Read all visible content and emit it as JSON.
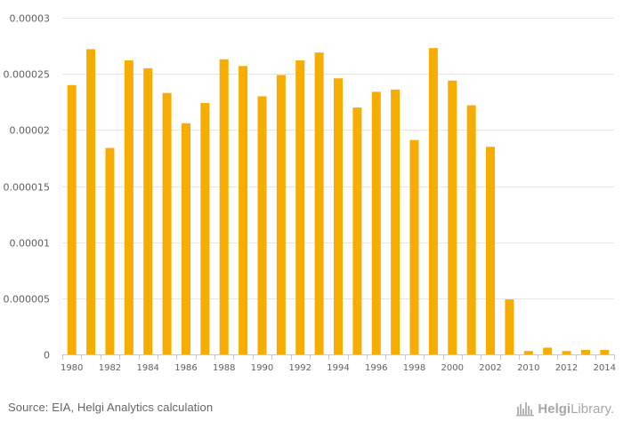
{
  "chart_data": {
    "type": "bar",
    "categories": [
      "1980",
      "1981",
      "1982",
      "1983",
      "1984",
      "1985",
      "1986",
      "1987",
      "1988",
      "1989",
      "1990",
      "1991",
      "1992",
      "1993",
      "1994",
      "1995",
      "1996",
      "1997",
      "1998",
      "1999",
      "2000",
      "2001",
      "2002",
      "2003",
      "2010",
      "2011",
      "2012",
      "2013",
      "2014"
    ],
    "x_tick_labels": [
      "1980",
      "1982",
      "1984",
      "1986",
      "1988",
      "1990",
      "1992",
      "1994",
      "1996",
      "1998",
      "2000",
      "2002",
      "2010",
      "2012",
      "2014"
    ],
    "values": [
      2.4e-05,
      2.72e-05,
      1.84e-05,
      2.62e-05,
      2.55e-05,
      2.33e-05,
      2.06e-05,
      2.24e-05,
      2.63e-05,
      2.57e-05,
      2.3e-05,
      2.49e-05,
      2.62e-05,
      2.69e-05,
      2.46e-05,
      2.2e-05,
      2.34e-05,
      2.36e-05,
      1.91e-05,
      2.73e-05,
      2.44e-05,
      2.22e-05,
      1.85e-05,
      4.9e-06,
      3e-07,
      6e-07,
      3e-07,
      4e-07,
      4e-07
    ],
    "y_ticks": [
      0,
      5e-06,
      1e-05,
      1.5e-05,
      2e-05,
      2.5e-05,
      3e-05
    ],
    "y_tick_labels": [
      "0",
      "0.000005",
      "0.00001",
      "0.000015",
      "0.00002",
      "0.000025",
      "0.00003"
    ],
    "ylim": [
      0,
      3e-05
    ],
    "bar_color": "#f6ad00",
    "grid": true,
    "grid_color": "#e6e6e6"
  },
  "footer": {
    "source": "Source: EIA, Helgi Analytics calculation",
    "brand_bold": "Helgi",
    "brand_rest": "Library."
  }
}
